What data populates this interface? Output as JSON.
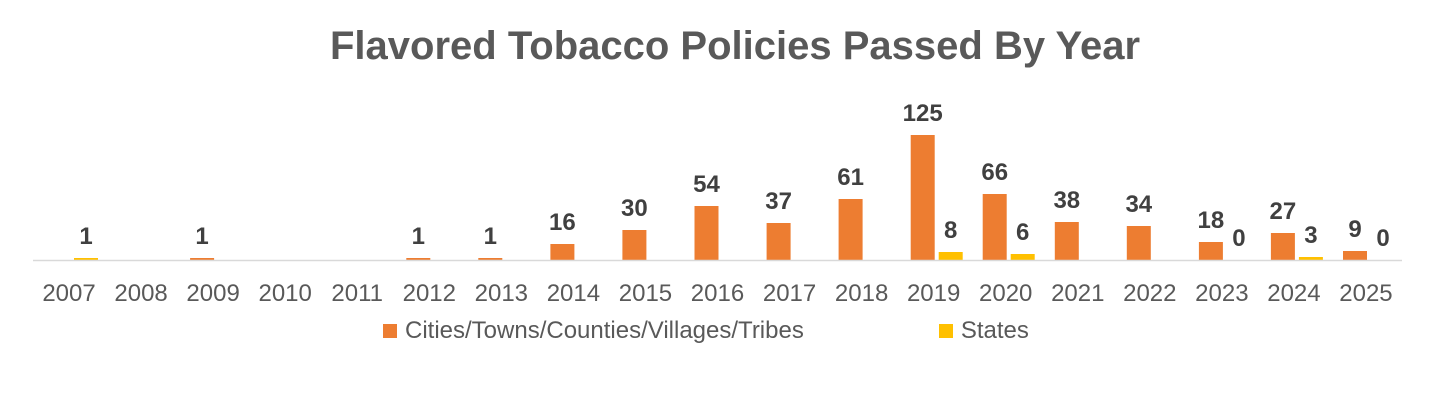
{
  "chart_data": {
    "type": "bar",
    "title": "Flavored Tobacco Policies Passed By Year",
    "xlabel": "",
    "ylabel": "",
    "ylim": [
      0,
      125
    ],
    "grid": false,
    "legend_position": "bottom",
    "categories": [
      "2007",
      "2008",
      "2009",
      "2010",
      "2011",
      "2012",
      "2013",
      "2014",
      "2015",
      "2016",
      "2017",
      "2018",
      "2019",
      "2020",
      "2021",
      "2022",
      "2023",
      "2024",
      "2025"
    ],
    "series": [
      {
        "name": "Cities/Towns/Counties/Villages/Tribes",
        "color": "#ED7D31",
        "values": [
          null,
          null,
          1,
          null,
          null,
          1,
          1,
          16,
          30,
          54,
          37,
          61,
          125,
          66,
          38,
          34,
          18,
          27,
          9
        ],
        "labels": [
          "",
          "",
          "1",
          "",
          "",
          "1",
          "1",
          "16",
          "30",
          "54",
          "37",
          "61",
          "125",
          "66",
          "38",
          "34",
          "18",
          "27",
          "9"
        ]
      },
      {
        "name": "States",
        "color": "#FFC000",
        "values": [
          1,
          null,
          null,
          null,
          null,
          null,
          null,
          null,
          null,
          null,
          null,
          null,
          8,
          6,
          null,
          null,
          0,
          3,
          0
        ],
        "labels": [
          "1",
          "",
          "",
          "",
          "",
          "",
          "",
          "",
          "",
          "",
          "",
          "",
          "8",
          "6",
          "",
          "",
          "0",
          "3",
          "0"
        ]
      }
    ]
  }
}
